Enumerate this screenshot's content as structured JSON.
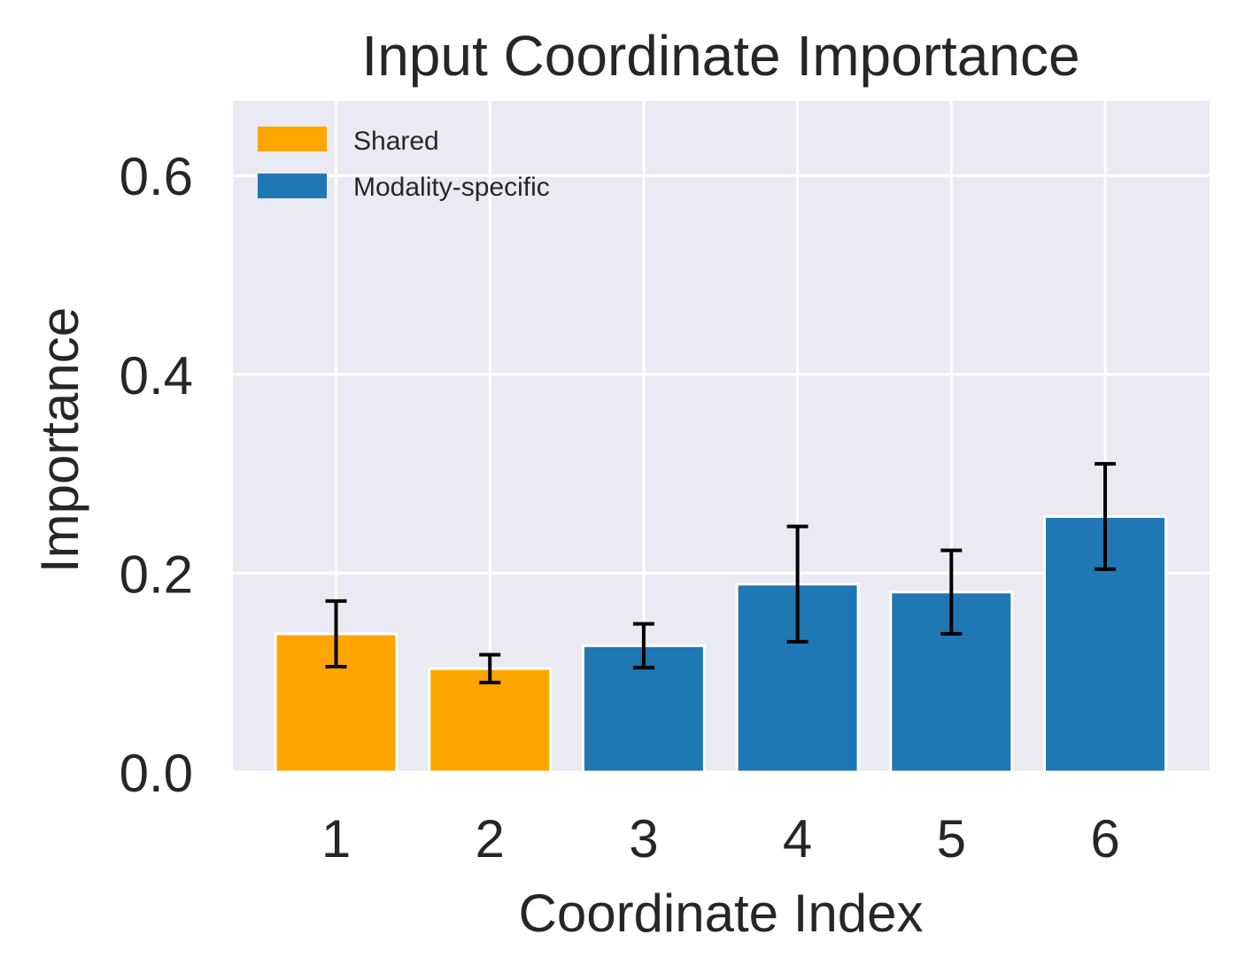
{
  "chart_data": {
    "type": "bar",
    "title": "Input Coordinate Importance",
    "xlabel": "Coordinate Index",
    "ylabel": "Importance",
    "categories": [
      "1",
      "2",
      "3",
      "4",
      "5",
      "6"
    ],
    "values": [
      0.139,
      0.104,
      0.127,
      0.189,
      0.181,
      0.257
    ],
    "errors": [
      0.033,
      0.014,
      0.022,
      0.058,
      0.042,
      0.053
    ],
    "groups": [
      "Shared",
      "Shared",
      "Modality-specific",
      "Modality-specific",
      "Modality-specific",
      "Modality-specific"
    ],
    "ylim": [
      0,
      0.675
    ],
    "yticks": [
      0.0,
      0.2,
      0.4,
      0.6
    ],
    "ytick_labels": [
      "0.0",
      "0.2",
      "0.4",
      "0.6"
    ],
    "grid": true,
    "legend": {
      "position": "top-left",
      "entries": [
        {
          "label": "Shared",
          "color": "#FFA500"
        },
        {
          "label": "Modality-specific",
          "color": "#1F77B4"
        }
      ]
    },
    "colors": {
      "Shared": "#FFA500",
      "Modality-specific": "#1F77B4",
      "plot_background": "#EAEAF2",
      "grid": "#FFFFFF",
      "error_bar": "#000000",
      "text": "#262626"
    }
  }
}
